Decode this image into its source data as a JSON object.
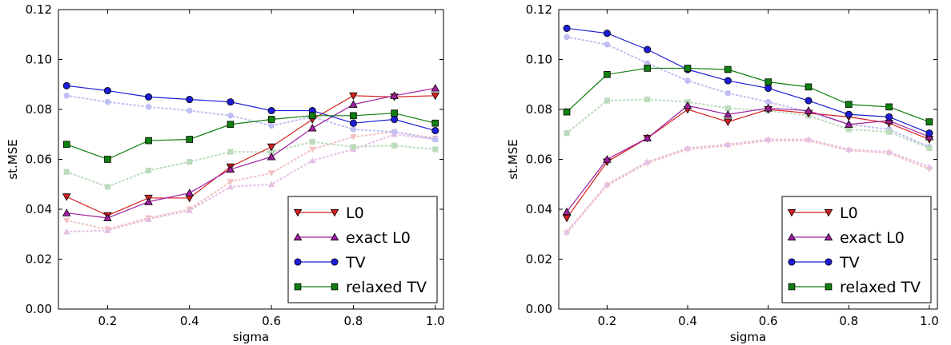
{
  "chart_data": [
    {
      "type": "line",
      "xlabel": "sigma",
      "ylabel": "st.MSE",
      "xlim": [
        0.08,
        1.02
      ],
      "ylim": [
        0.0,
        0.12
      ],
      "xticks": [
        "0.2",
        "0.4",
        "0.6",
        "0.8",
        "1.0"
      ],
      "yticks": [
        "0.00",
        "0.02",
        "0.04",
        "0.06",
        "0.08",
        "0.10",
        "0.12"
      ],
      "x": [
        0.1,
        0.2,
        0.3,
        0.4,
        0.5,
        0.6,
        0.7,
        0.8,
        0.9,
        1.0
      ],
      "grid": false,
      "legend_position": "bottom-right",
      "series": [
        {
          "name": "L0",
          "marker": "triangle-down",
          "color": "#d62020",
          "values": [
            0.045,
            0.0375,
            0.0445,
            0.0445,
            0.057,
            0.065,
            0.076,
            0.0855,
            0.085,
            0.0855
          ]
        },
        {
          "name": "exact L0",
          "marker": "triangle-up",
          "color": "#a020a0",
          "values": [
            0.0385,
            0.0365,
            0.043,
            0.0465,
            0.056,
            0.061,
            0.0725,
            0.082,
            0.0855,
            0.0885
          ]
        },
        {
          "name": "TV",
          "marker": "circle",
          "color": "#1c1cd6",
          "values": [
            0.0895,
            0.0875,
            0.085,
            0.084,
            0.083,
            0.0795,
            0.0795,
            0.0745,
            0.076,
            0.0715
          ]
        },
        {
          "name": "relaxed TV",
          "marker": "square",
          "color": "#0f7f0f",
          "values": [
            0.066,
            0.06,
            0.0675,
            0.068,
            0.074,
            0.076,
            0.0775,
            0.0775,
            0.0785,
            0.0745
          ]
        }
      ],
      "faded_series": [
        {
          "marker": "triangle-down",
          "color": "#d62020",
          "values": [
            0.0355,
            0.032,
            0.0365,
            0.04,
            0.051,
            0.0545,
            0.064,
            0.069,
            0.071,
            0.0685
          ]
        },
        {
          "marker": "triangle-up",
          "color": "#a020a0",
          "values": [
            0.031,
            0.0315,
            0.036,
            0.0395,
            0.049,
            0.05,
            0.0595,
            0.064,
            0.07,
            0.068
          ]
        },
        {
          "marker": "circle",
          "color": "#1c1cd6",
          "values": [
            0.0855,
            0.083,
            0.081,
            0.0795,
            0.0775,
            0.0735,
            0.077,
            0.072,
            0.071,
            0.068
          ]
        },
        {
          "marker": "square",
          "color": "#0f7f0f",
          "values": [
            0.055,
            0.049,
            0.0555,
            0.059,
            0.063,
            0.063,
            0.067,
            0.065,
            0.0655,
            0.064
          ]
        }
      ]
    },
    {
      "type": "line",
      "xlabel": "sigma",
      "ylabel": "st.MSE",
      "xlim": [
        0.08,
        1.02
      ],
      "ylim": [
        0.0,
        0.12
      ],
      "xticks": [
        "0.2",
        "0.4",
        "0.6",
        "0.8",
        "1.0"
      ],
      "yticks": [
        "0.00",
        "0.02",
        "0.04",
        "0.06",
        "0.08",
        "0.10",
        "0.12"
      ],
      "x": [
        0.1,
        0.2,
        0.3,
        0.4,
        0.5,
        0.6,
        0.7,
        0.8,
        0.9,
        1.0
      ],
      "grid": false,
      "legend_position": "bottom-right",
      "series": [
        {
          "name": "L0",
          "marker": "triangle-down",
          "color": "#d62020",
          "values": [
            0.0365,
            0.059,
            0.0685,
            0.08,
            0.075,
            0.08,
            0.0785,
            0.077,
            0.0745,
            0.068
          ]
        },
        {
          "name": "exact L0",
          "marker": "triangle-up",
          "color": "#a020a0",
          "values": [
            0.039,
            0.06,
            0.0685,
            0.0815,
            0.078,
            0.0805,
            0.0795,
            0.074,
            0.0755,
            0.069
          ]
        },
        {
          "name": "TV",
          "marker": "circle",
          "color": "#1c1cd6",
          "values": [
            0.1125,
            0.1105,
            0.104,
            0.096,
            0.0915,
            0.0885,
            0.0835,
            0.078,
            0.077,
            0.0705
          ]
        },
        {
          "name": "relaxed TV",
          "marker": "square",
          "color": "#0f7f0f",
          "values": [
            0.079,
            0.094,
            0.0965,
            0.0965,
            0.096,
            0.091,
            0.089,
            0.082,
            0.081,
            0.075
          ]
        }
      ],
      "faded_series": [
        {
          "marker": "triangle-down",
          "color": "#d62020",
          "values": [
            0.0305,
            0.0495,
            0.0585,
            0.064,
            0.0655,
            0.0675,
            0.0675,
            0.0635,
            0.0625,
            0.056
          ]
        },
        {
          "marker": "triangle-up",
          "color": "#a020a0",
          "values": [
            0.031,
            0.05,
            0.059,
            0.0645,
            0.066,
            0.068,
            0.068,
            0.064,
            0.063,
            0.057
          ]
        },
        {
          "marker": "circle",
          "color": "#1c1cd6",
          "values": [
            0.109,
            0.106,
            0.0985,
            0.0915,
            0.0865,
            0.083,
            0.079,
            0.074,
            0.072,
            0.065
          ]
        },
        {
          "marker": "square",
          "color": "#0f7f0f",
          "values": [
            0.0705,
            0.0835,
            0.084,
            0.083,
            0.0805,
            0.0795,
            0.0775,
            0.072,
            0.071,
            0.0645
          ]
        }
      ]
    }
  ]
}
